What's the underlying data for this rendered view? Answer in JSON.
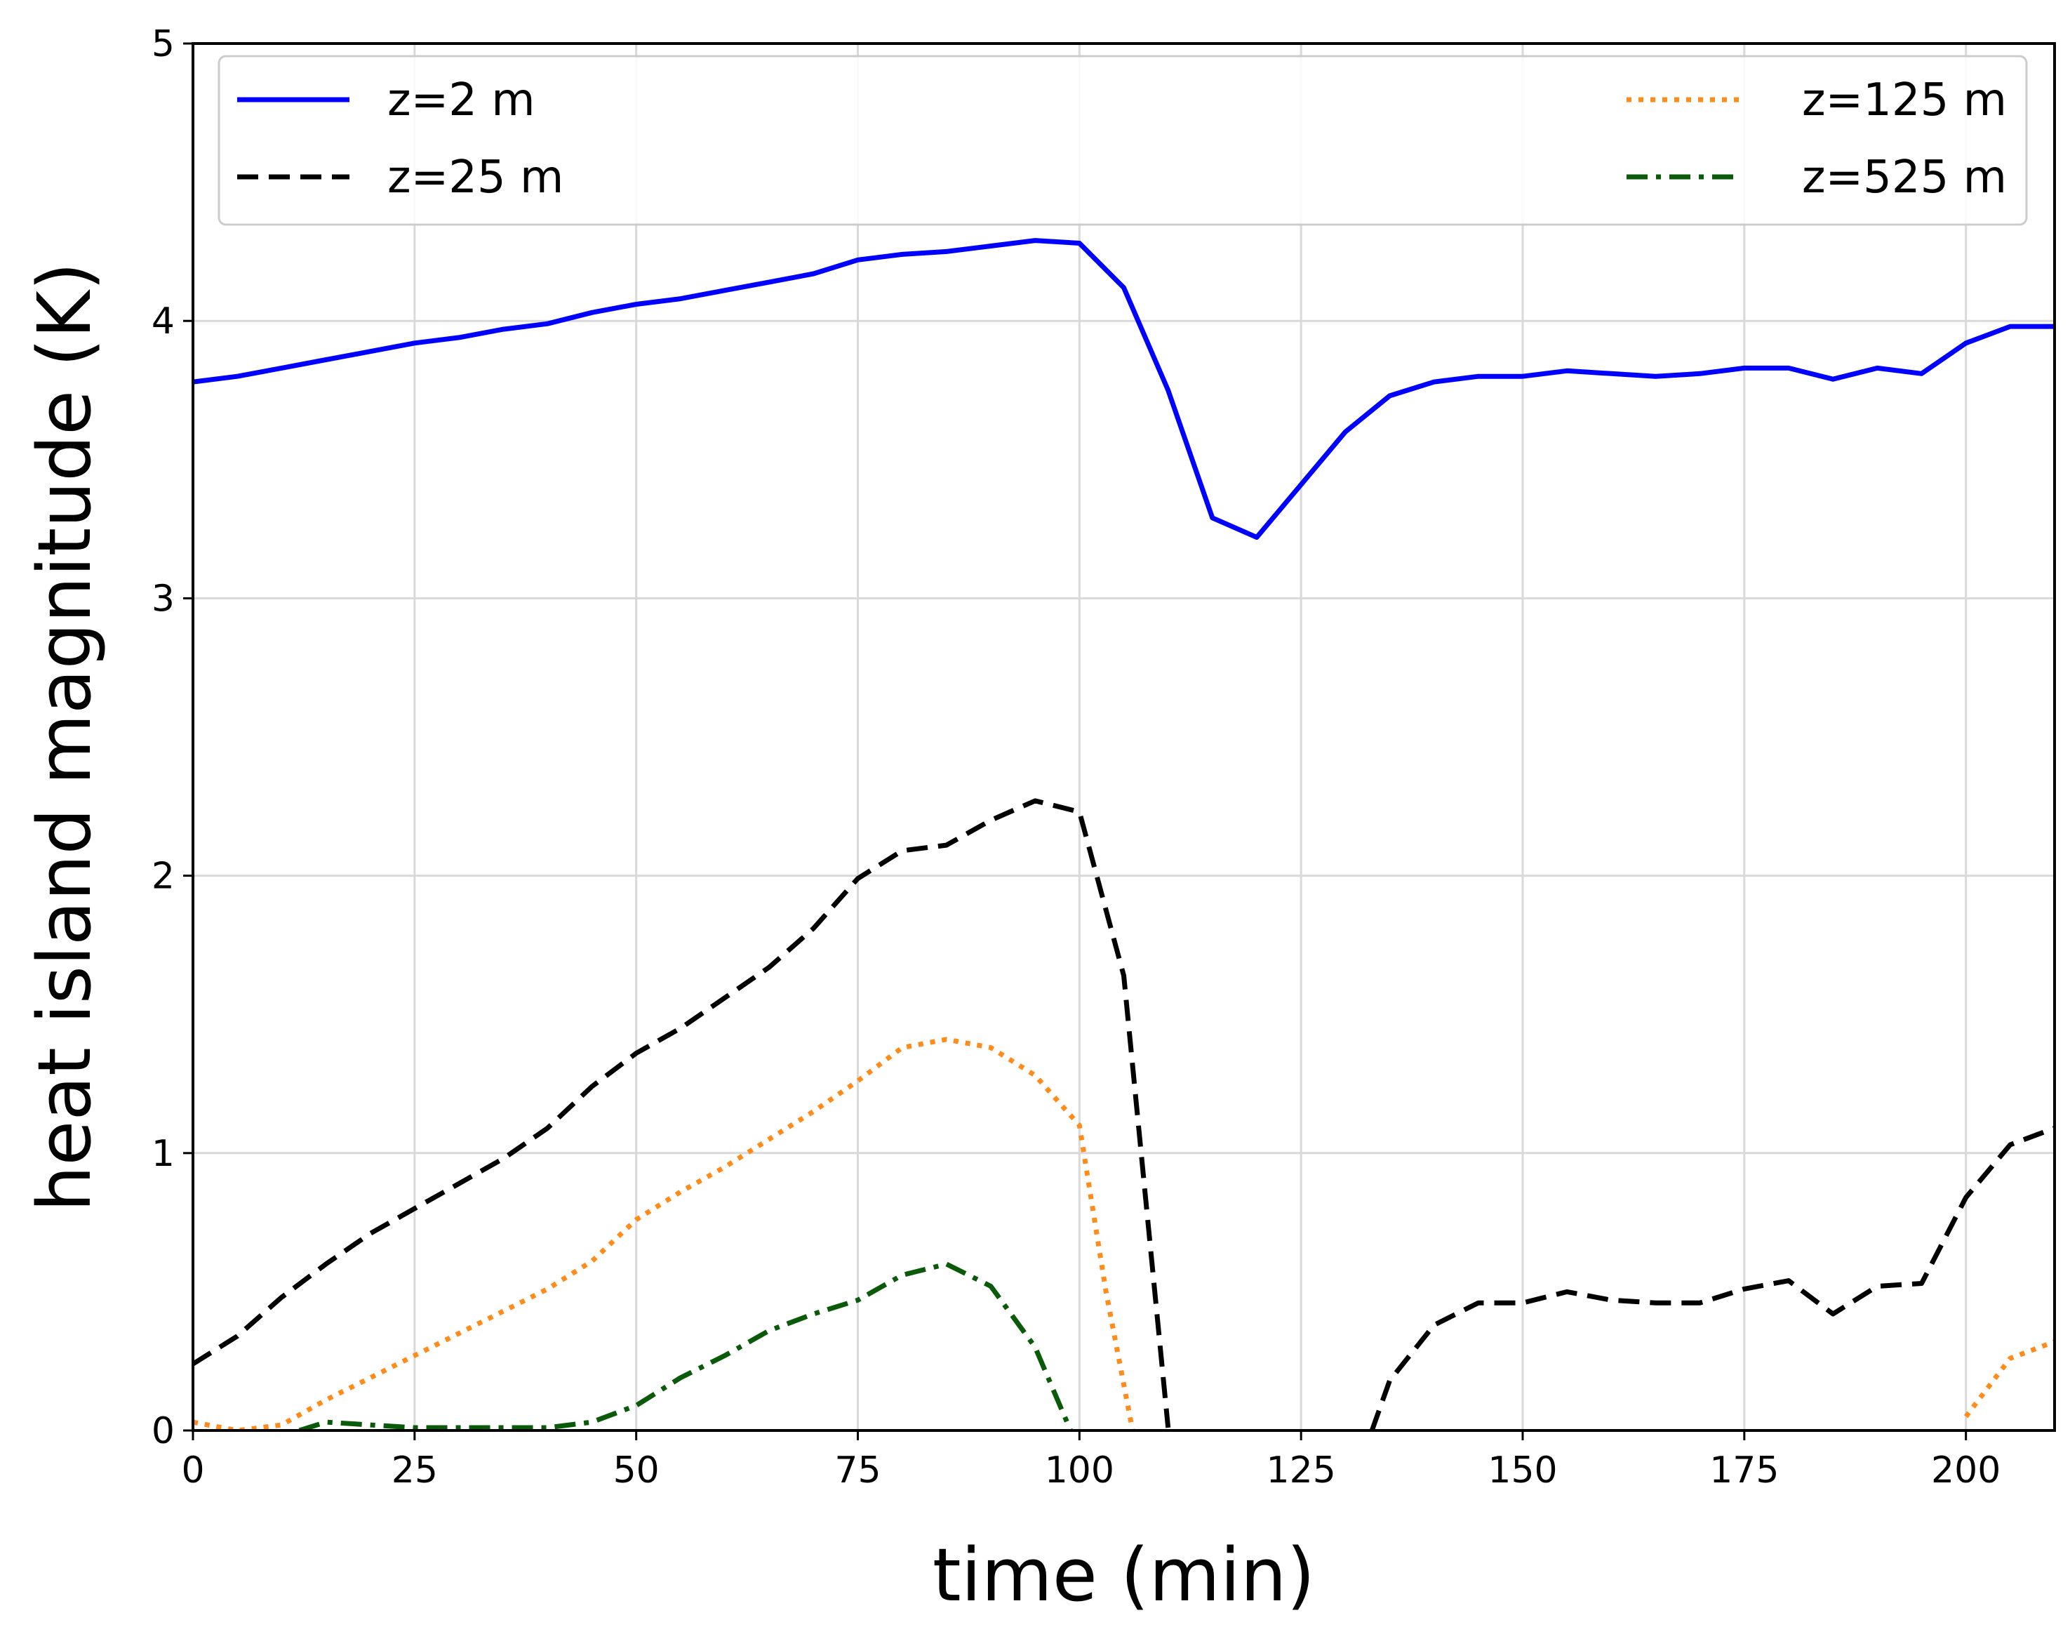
{
  "chart_data": {
    "type": "line",
    "title": "",
    "xlabel": "time (min)",
    "ylabel": "heat island magnitude (K)",
    "xlim": [
      0,
      210
    ],
    "ylim": [
      0,
      5
    ],
    "xticks": [
      "0",
      "25",
      "50",
      "75",
      "100",
      "125",
      "150",
      "175",
      "200"
    ],
    "yticks": [
      "0",
      "1",
      "2",
      "3",
      "4",
      "5"
    ],
    "grid": true,
    "legend_placement": "top",
    "series": [
      {
        "name": "z=2 m",
        "color": "#0000ff",
        "style": "solid",
        "x": [
          0,
          5,
          10,
          15,
          20,
          25,
          30,
          35,
          40,
          45,
          50,
          55,
          60,
          65,
          70,
          75,
          80,
          85,
          90,
          95,
          100,
          105,
          110,
          115,
          120,
          125,
          130,
          135,
          140,
          145,
          150,
          155,
          160,
          165,
          170,
          175,
          180,
          185,
          190,
          195,
          200,
          205,
          210
        ],
        "y": [
          3.78,
          3.8,
          3.83,
          3.86,
          3.89,
          3.92,
          3.94,
          3.97,
          3.99,
          4.03,
          4.06,
          4.08,
          4.11,
          4.14,
          4.17,
          4.22,
          4.24,
          4.25,
          4.27,
          4.29,
          4.28,
          4.12,
          3.75,
          3.29,
          3.22,
          3.41,
          3.6,
          3.73,
          3.78,
          3.8,
          3.8,
          3.82,
          3.81,
          3.8,
          3.81,
          3.83,
          3.83,
          3.79,
          3.83,
          3.81,
          3.92,
          3.98,
          3.98
        ]
      },
      {
        "name": "z=25 m",
        "color": "#000000",
        "style": "dashed",
        "x": [
          0,
          5,
          10,
          15,
          20,
          25,
          30,
          35,
          40,
          45,
          50,
          55,
          60,
          65,
          70,
          75,
          80,
          85,
          90,
          95,
          100,
          105,
          110,
          null,
          133,
          135,
          140,
          145,
          150,
          155,
          160,
          165,
          170,
          175,
          180,
          185,
          190,
          195,
          200,
          205,
          210
        ],
        "y": [
          0.24,
          0.34,
          0.48,
          0.6,
          0.71,
          0.8,
          0.89,
          0.98,
          1.09,
          1.24,
          1.36,
          1.45,
          1.56,
          1.67,
          1.81,
          1.99,
          2.09,
          2.11,
          2.2,
          2.27,
          2.23,
          1.64,
          0.01,
          null,
          0.0,
          0.18,
          0.38,
          0.46,
          0.46,
          0.5,
          0.47,
          0.46,
          0.46,
          0.51,
          0.54,
          0.42,
          0.52,
          0.53,
          0.84,
          1.03,
          1.09
        ]
      },
      {
        "name": "z=125 m",
        "color": "#ff8c1a",
        "style": "dotted",
        "x": [
          0,
          5,
          10,
          15,
          20,
          25,
          30,
          35,
          40,
          45,
          50,
          55,
          60,
          65,
          70,
          75,
          80,
          85,
          90,
          95,
          100,
          103,
          106,
          null,
          200,
          205,
          210
        ],
        "y": [
          0.03,
          0.0,
          0.02,
          0.11,
          0.19,
          0.27,
          0.35,
          0.43,
          0.51,
          0.61,
          0.76,
          0.86,
          0.95,
          1.05,
          1.15,
          1.26,
          1.38,
          1.41,
          1.38,
          1.28,
          1.1,
          0.5,
          0.0,
          null,
          0.05,
          0.26,
          0.32
        ]
      },
      {
        "name": "z=525 m",
        "color": "#0a5a0a",
        "style": "dashdot",
        "x": [
          12,
          15,
          20,
          25,
          30,
          35,
          40,
          45,
          50,
          55,
          60,
          65,
          70,
          75,
          80,
          85,
          90,
          95,
          99
        ],
        "y": [
          0.0,
          0.03,
          0.02,
          0.01,
          0.01,
          0.01,
          0.01,
          0.03,
          0.09,
          0.19,
          0.27,
          0.36,
          0.42,
          0.47,
          0.56,
          0.6,
          0.52,
          0.3,
          0.0
        ]
      }
    ]
  }
}
